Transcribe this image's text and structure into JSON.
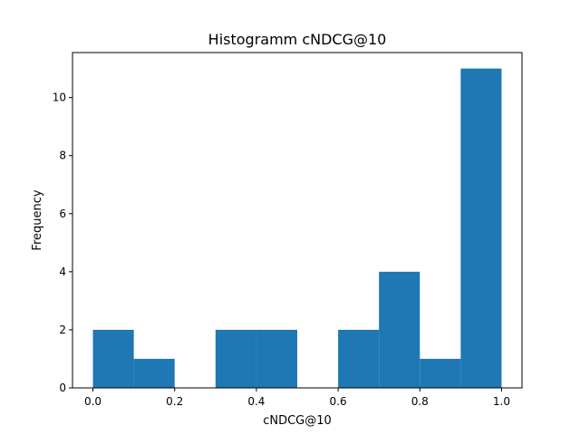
{
  "chart_data": {
    "type": "bar",
    "title": "Histogramm cNDCG@10",
    "xlabel": "cNDCG@10",
    "ylabel": "Frequency",
    "bins": [
      {
        "start": 0.0,
        "end": 0.1,
        "count": 2
      },
      {
        "start": 0.1,
        "end": 0.2,
        "count": 1
      },
      {
        "start": 0.2,
        "end": 0.3,
        "count": 0
      },
      {
        "start": 0.3,
        "end": 0.4,
        "count": 2
      },
      {
        "start": 0.4,
        "end": 0.5,
        "count": 2
      },
      {
        "start": 0.5,
        "end": 0.6,
        "count": 0
      },
      {
        "start": 0.6,
        "end": 0.7,
        "count": 2
      },
      {
        "start": 0.7,
        "end": 0.8,
        "count": 4
      },
      {
        "start": 0.8,
        "end": 0.9,
        "count": 1
      },
      {
        "start": 0.9,
        "end": 1.0,
        "count": 11
      }
    ],
    "xlim": [
      -0.05,
      1.05
    ],
    "ylim": [
      0,
      11.55
    ],
    "xticks": [
      "0.0",
      "0.2",
      "0.4",
      "0.6",
      "0.8",
      "1.0"
    ],
    "yticks": [
      "0",
      "2",
      "4",
      "6",
      "8",
      "10"
    ],
    "bar_color": "#1f77b4",
    "grid": false
  }
}
